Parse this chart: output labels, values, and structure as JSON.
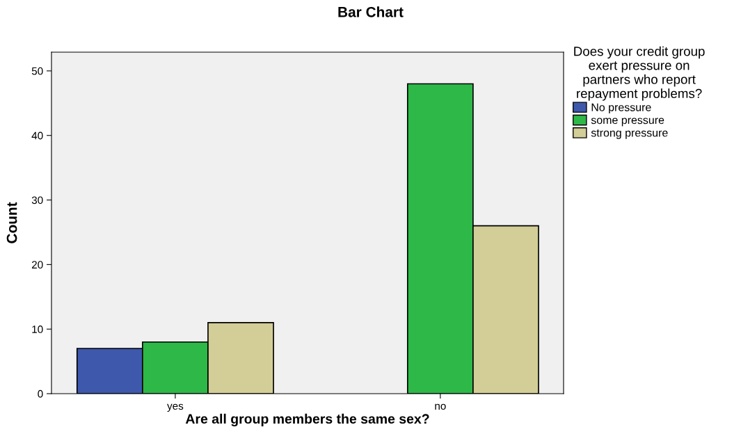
{
  "chart_data": {
    "type": "bar",
    "title": "Bar Chart",
    "xlabel": "Are all group members the same sex?",
    "ylabel": "Count",
    "categories": [
      "yes",
      "no"
    ],
    "series": [
      {
        "name": "No pressure",
        "color": "#3e58ac",
        "values": [
          7,
          null
        ]
      },
      {
        "name": "some pressure",
        "color": "#2eb848",
        "values": [
          8,
          48
        ]
      },
      {
        "name": "strong pressure",
        "color": "#d3ce97",
        "values": [
          11,
          26
        ]
      }
    ],
    "legend_title": "Does your credit group\nexert pressure on\npartners who report\nrepayment problems?",
    "legend": "right",
    "ylim": [
      0,
      52.9
    ],
    "yticks": [
      0,
      10,
      20,
      30,
      40,
      50
    ],
    "grid": false
  }
}
